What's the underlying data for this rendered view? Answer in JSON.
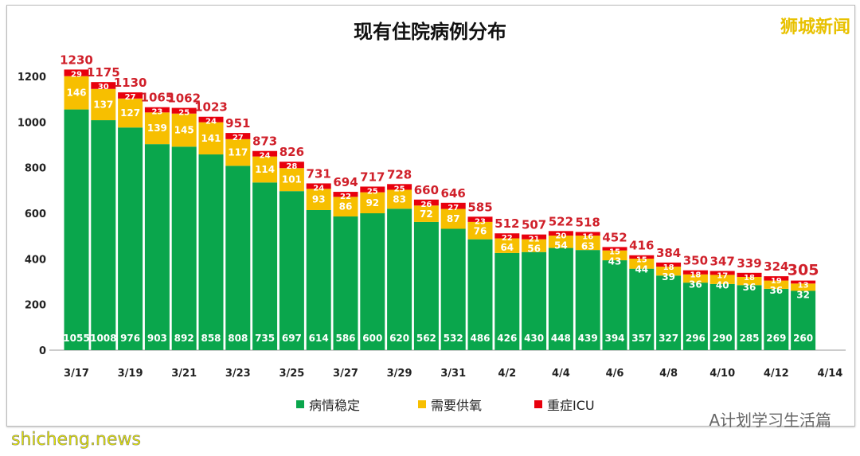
{
  "brand": "狮城新闻",
  "watermark_account": "A计划学习生活篇",
  "watermark_site": "shicheng.news",
  "colors": {
    "stable": "#0aa64c",
    "oxygen": "#f7bf00",
    "icu": "#e8000d",
    "total_label": "#d0202a"
  },
  "chart_data": {
    "type": "bar",
    "stacked": true,
    "title": "现有住院病例分布",
    "dates": [
      "3/17",
      "3/18",
      "3/19",
      "3/20",
      "3/21",
      "3/22",
      "3/23",
      "3/24",
      "3/25",
      "3/26",
      "3/27",
      "3/28",
      "3/29",
      "3/30",
      "3/31",
      "4/1",
      "4/2",
      "4/3",
      "4/4",
      "4/5",
      "4/6",
      "4/7",
      "4/8",
      "4/9",
      "4/10",
      "4/11",
      "4/12",
      "4/13"
    ],
    "x_tick_labels": [
      "3/17",
      "3/19",
      "3/21",
      "3/23",
      "3/25",
      "3/27",
      "3/29",
      "3/31",
      "4/2",
      "4/4",
      "4/6",
      "4/8",
      "4/10",
      "4/12",
      "4/14"
    ],
    "series": [
      {
        "name": "病情稳定",
        "values": [
          1055,
          1008,
          976,
          903,
          892,
          858,
          808,
          735,
          697,
          614,
          586,
          600,
          620,
          562,
          532,
          486,
          426,
          430,
          448,
          439,
          394,
          357,
          327,
          296,
          290,
          285,
          269,
          260
        ]
      },
      {
        "name": "需要供氧",
        "values": [
          146,
          137,
          127,
          139,
          145,
          141,
          117,
          114,
          101,
          93,
          86,
          92,
          83,
          72,
          87,
          76,
          64,
          56,
          54,
          63,
          43,
          44,
          39,
          36,
          40,
          36,
          36,
          32
        ]
      },
      {
        "name": "重症ICU",
        "values": [
          29,
          30,
          27,
          23,
          25,
          24,
          27,
          24,
          28,
          24,
          22,
          25,
          25,
          26,
          27,
          23,
          22,
          21,
          20,
          16,
          15,
          15,
          18,
          18,
          17,
          18,
          19,
          13
        ]
      }
    ],
    "totals": [
      1230,
      1175,
      1130,
      1065,
      1062,
      1023,
      951,
      873,
      826,
      731,
      694,
      717,
      728,
      660,
      646,
      585,
      512,
      507,
      522,
      518,
      452,
      416,
      384,
      350,
      347,
      339,
      324,
      305
    ],
    "y_ticks": [
      0,
      200,
      400,
      600,
      800,
      1000,
      1200
    ],
    "ylim": [
      0,
      1200
    ],
    "grid": false,
    "legend": "bottom"
  }
}
